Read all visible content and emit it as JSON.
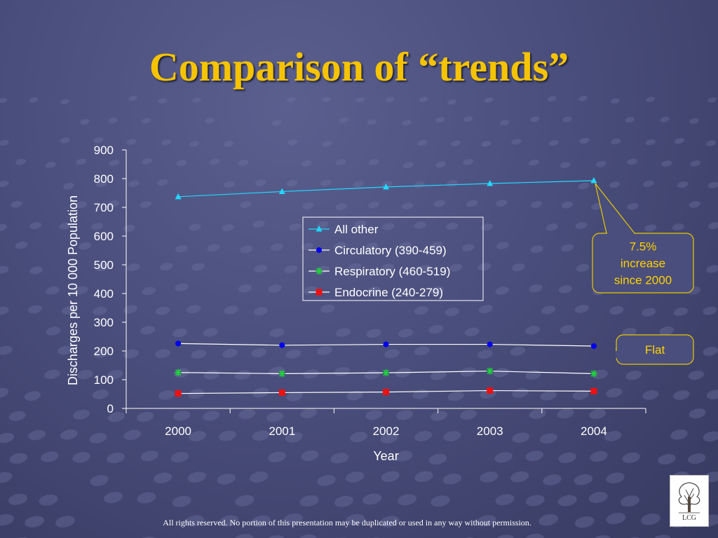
{
  "slide": {
    "title": "Comparison of “trends”",
    "footer": "All rights reserved. No portion of this presentation may be duplicated or used in any way without permission.",
    "logo_text": "LCG",
    "accent_color": "#f5c300"
  },
  "chart_data": {
    "type": "line",
    "xlabel": "Year",
    "ylabel": "Discharges per 10 000 Population",
    "categories": [
      "2000",
      "2001",
      "2002",
      "2003",
      "2004"
    ],
    "ylim": [
      0,
      900
    ],
    "yticks": [
      0,
      100,
      200,
      300,
      400,
      500,
      600,
      700,
      800,
      900
    ],
    "grid": false,
    "legend_position": "center",
    "series": [
      {
        "name": "All other",
        "values": [
          737,
          755,
          771,
          783,
          793
        ],
        "color": "#22d8ff",
        "marker": "triangle"
      },
      {
        "name": "Circulatory (390-459)",
        "values": [
          226,
          220,
          223,
          223,
          217
        ],
        "color": "#0000ee",
        "marker": "circle"
      },
      {
        "name": "Respiratory (460-519)",
        "values": [
          125,
          121,
          124,
          130,
          121
        ],
        "color": "#1fd43a",
        "marker": "star"
      },
      {
        "name": "Endocrine (240-279)",
        "values": [
          52,
          55,
          57,
          62,
          60
        ],
        "color": "#ee1111",
        "marker": "square"
      }
    ],
    "annotations": [
      {
        "text": "7.5%\nincrease\nsince 2000",
        "series": 0,
        "point": 4
      },
      {
        "text": "Flat",
        "series": 1,
        "point": 4
      }
    ]
  }
}
